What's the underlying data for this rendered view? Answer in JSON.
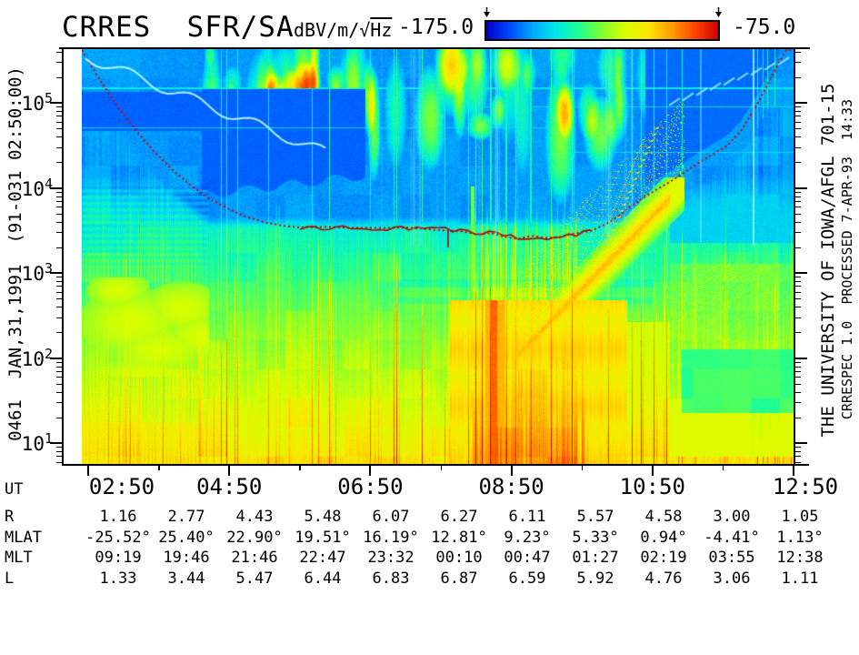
{
  "header": {
    "title": "CRRES  SFR/SA",
    "colorbar": {
      "units_prefix": "dBV/m/",
      "units_radical": "√",
      "units_radicand": "Hz",
      "min_label": "-175.0",
      "max_label": "-75.0",
      "gradient_stops": [
        "#0000c8",
        "#0048ff",
        "#00a8ff",
        "#00e8e8",
        "#20ff90",
        "#80ff30",
        "#d8ff00",
        "#ffe400",
        "#ff9c00",
        "#ff4400",
        "#cc0000"
      ]
    }
  },
  "left_margin": {
    "orbit_date_label": "0461  JAN,31,1991  (91-031 02:50:00)"
  },
  "right_margin": {
    "institution_label": "THE UNIVERSITY OF IOWA/AFGL 701-15",
    "processing_label": "CRRESPEC 1.0  PROCESSED 7-APR-93  14:33"
  },
  "chart_data": {
    "type": "heatmap",
    "title": "CRRES SFR/SA",
    "color_scale": {
      "units": "dBV/m/√Hz",
      "min": -175.0,
      "max": -75.0,
      "palette": "blue-cyan-green-yellow-red jet"
    },
    "x_axis": {
      "label": "UT",
      "tick_labels": [
        "02:50",
        "04:50",
        "06:50",
        "08:50",
        "10:50",
        "12:50"
      ],
      "minor_tick_interval_hours": 1
    },
    "y_axis": {
      "scale": "log",
      "unit": "Hz",
      "tick_base": "10",
      "tick_exponents_top_to_bottom": [
        "5",
        "4",
        "3",
        "2",
        "1"
      ],
      "approx_range_hz": [
        5.6,
        430000
      ]
    },
    "overlay_curve": {
      "name": "fce-line",
      "color": "#cc0000",
      "style": "dotted",
      "points_ut_hz": [
        [
          "02:50",
          420000
        ],
        [
          "03:10",
          80000
        ],
        [
          "03:50",
          15000
        ],
        [
          "04:30",
          6500
        ],
        [
          "05:30",
          3800
        ],
        [
          "06:50",
          3200
        ],
        [
          "08:00",
          2900
        ],
        [
          "08:50",
          2700
        ],
        [
          "09:30",
          3300
        ],
        [
          "10:10",
          5500
        ],
        [
          "10:50",
          11000
        ],
        [
          "11:30",
          40000
        ],
        [
          "12:10",
          150000
        ],
        [
          "12:45",
          420000
        ]
      ]
    },
    "ephemeris_rows": [
      {
        "label": "R",
        "values": [
          "1.16",
          "2.77",
          "4.43",
          "5.48",
          "6.07",
          "6.27",
          "6.11",
          "5.57",
          "4.58",
          "3.00",
          "1.05"
        ]
      },
      {
        "label": "MLAT",
        "values": [
          "-25.52°",
          "25.40°",
          "22.90°",
          "19.51°",
          "16.19°",
          "12.81°",
          "9.23°",
          "5.33°",
          "0.94°",
          "-4.41°",
          "1.13°"
        ]
      },
      {
        "label": "MLT",
        "values": [
          "09:19",
          "19:46",
          "21:46",
          "22:47",
          "23:32",
          "00:10",
          "00:47",
          "01:27",
          "02:19",
          "03:55",
          "12:38"
        ]
      },
      {
        "label": "L",
        "values": [
          "1.33",
          "3.44",
          "5.47",
          "6.44",
          "6.83",
          "6.87",
          "6.59",
          "5.92",
          "4.76",
          "3.06",
          "1.11"
        ]
      }
    ]
  }
}
